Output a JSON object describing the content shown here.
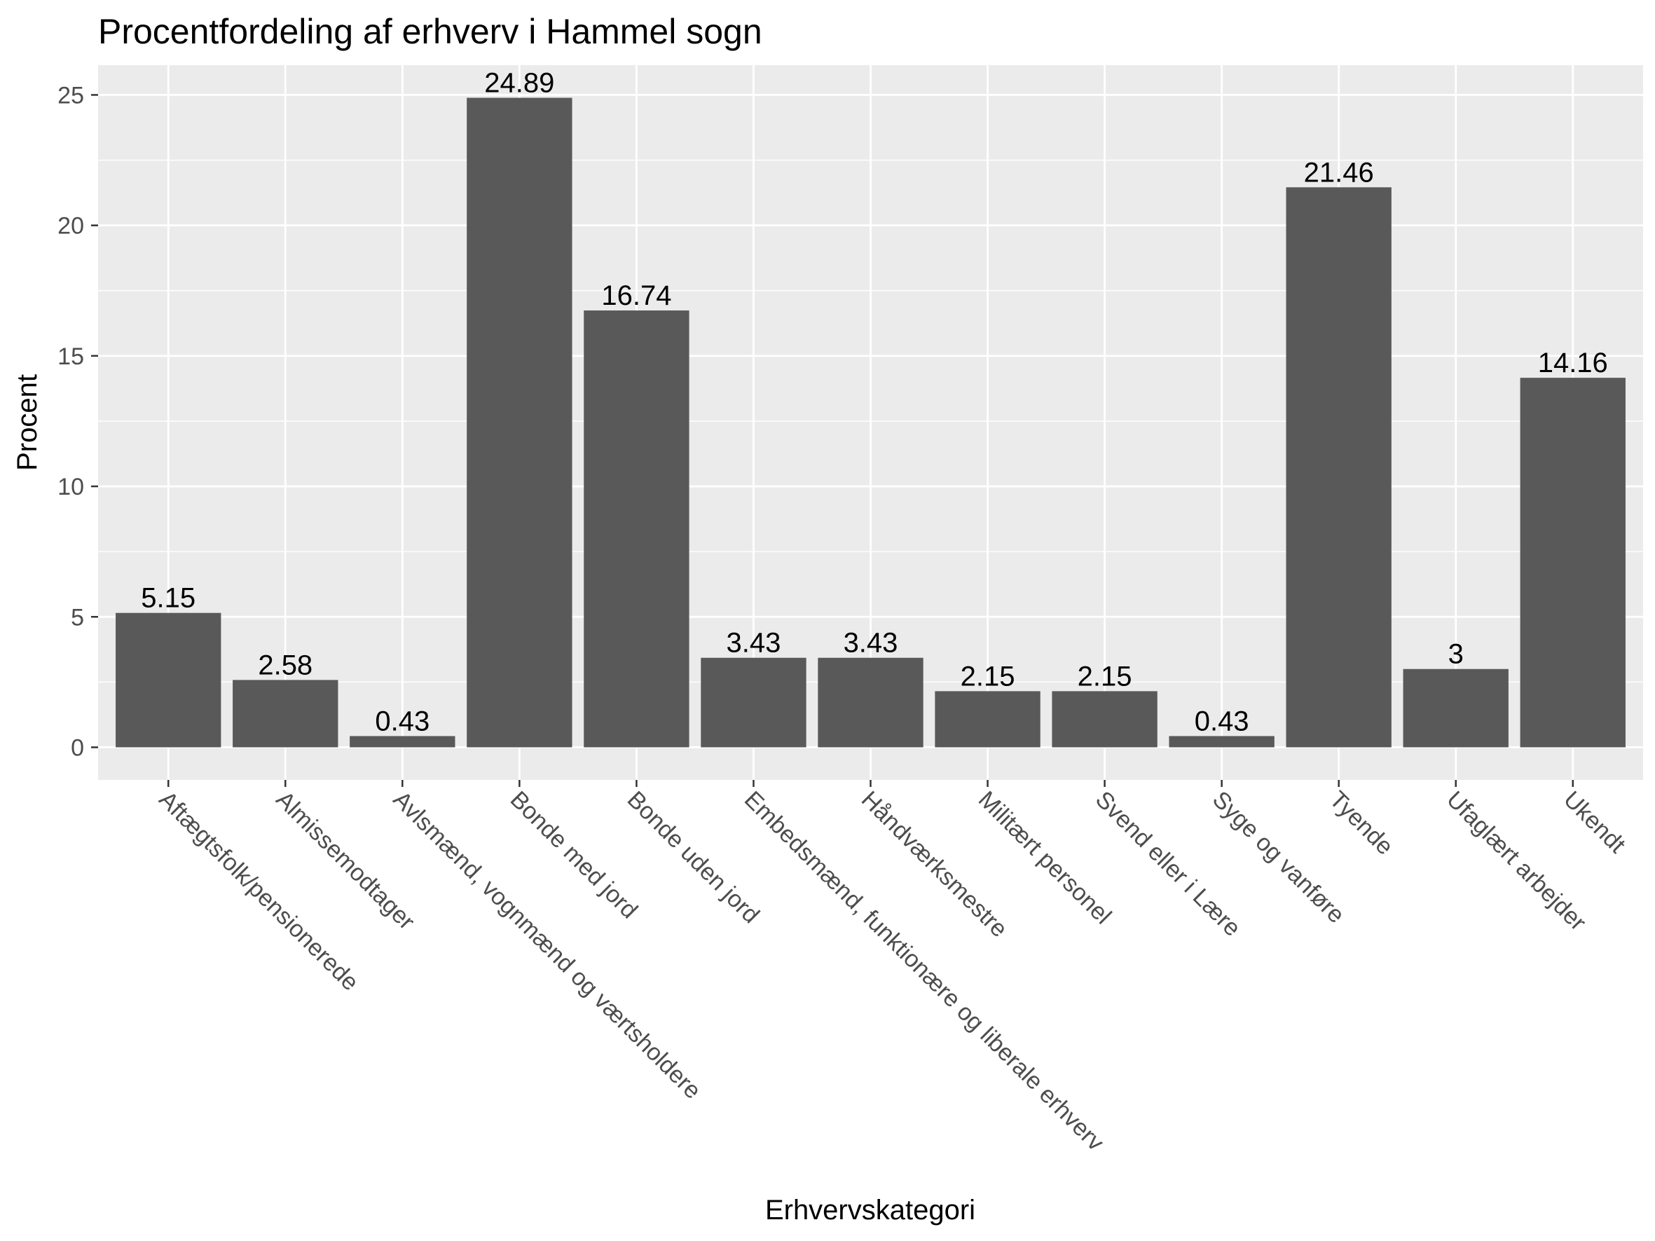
{
  "chart_data": {
    "type": "bar",
    "title": "Procentfordeling af erhverv i Hammel sogn",
    "xlabel": "Erhvervskategori",
    "ylabel": "Procent",
    "categories": [
      "Aftægtsfolk/pensionerede",
      "Almissemodtager",
      "Avlsmænd, vognmænd og værtsholdere",
      "Bonde med jord",
      "Bonde uden jord",
      "Embedsmænd, funktionære og liberale erhverv",
      "Håndværksmestre",
      "Militært personel",
      "Svend eller i Lære",
      "Syge og vanføre",
      "Tyende",
      "Ufaglært arbejder",
      "Ukendt"
    ],
    "values": [
      5.15,
      2.58,
      0.43,
      24.89,
      16.74,
      3.43,
      3.43,
      2.15,
      2.15,
      0.43,
      21.46,
      3,
      14.16
    ],
    "data_labels": [
      "5.15",
      "2.58",
      "0.43",
      "24.89",
      "16.74",
      "3.43",
      "3.43",
      "2.15",
      "2.15",
      "0.43",
      "21.46",
      "3",
      "14.16"
    ],
    "yticks": [
      0,
      5,
      10,
      15,
      20,
      25
    ],
    "ytick_labels": [
      "0",
      "5",
      "10",
      "15",
      "20",
      "25"
    ],
    "ylim": [
      -1.25,
      26.14
    ],
    "grid": true,
    "legend": "none",
    "colors": {
      "bar": "#595959",
      "panel": "#ebebeb",
      "grid": "#ffffff"
    }
  }
}
